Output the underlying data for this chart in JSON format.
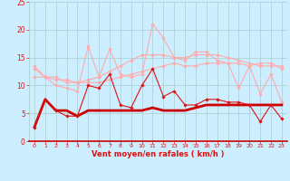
{
  "x": [
    0,
    1,
    2,
    3,
    4,
    5,
    6,
    7,
    8,
    9,
    10,
    11,
    12,
    13,
    14,
    15,
    16,
    17,
    18,
    19,
    20,
    21,
    22,
    23
  ],
  "series": [
    {
      "y": [
        2.5,
        7.5,
        5.5,
        4.5,
        4.5,
        10.0,
        9.5,
        12.0,
        6.5,
        6.0,
        10.0,
        13.0,
        8.0,
        9.0,
        6.5,
        6.5,
        7.5,
        7.5,
        7.0,
        7.0,
        6.5,
        3.5,
        6.5,
        4.0
      ],
      "color": "#dd1111",
      "lw": 0.8,
      "marker": "D",
      "ms": 1.8,
      "zorder": 5
    },
    {
      "y": [
        2.5,
        7.5,
        5.5,
        5.5,
        4.5,
        5.5,
        5.5,
        5.5,
        5.5,
        5.5,
        5.5,
        6.0,
        5.5,
        5.5,
        5.5,
        6.0,
        6.5,
        6.5,
        6.5,
        6.5,
        6.5,
        6.5,
        6.5,
        6.5
      ],
      "color": "#cc0000",
      "lw": 2.0,
      "marker": null,
      "ms": 0,
      "zorder": 3
    },
    {
      "y": [
        11.5,
        11.5,
        11.0,
        11.0,
        10.5,
        10.5,
        10.5,
        11.0,
        11.5,
        12.0,
        12.5,
        13.0,
        13.5,
        14.0,
        13.5,
        13.5,
        14.0,
        14.0,
        14.0,
        14.0,
        13.5,
        14.0,
        14.0,
        13.0
      ],
      "color": "#ffaaaa",
      "lw": 0.8,
      "marker": "D",
      "ms": 1.8,
      "zorder": 2
    },
    {
      "y": [
        13.0,
        11.5,
        11.5,
        10.5,
        10.5,
        11.0,
        11.5,
        12.5,
        13.5,
        14.5,
        15.5,
        15.5,
        15.5,
        15.0,
        15.0,
        15.5,
        15.5,
        15.5,
        15.0,
        14.5,
        14.0,
        13.5,
        13.5,
        13.5
      ],
      "color": "#ffaaaa",
      "lw": 0.8,
      "marker": "D",
      "ms": 1.8,
      "zorder": 2
    },
    {
      "y": [
        13.5,
        11.5,
        10.0,
        9.5,
        9.0,
        17.0,
        11.5,
        16.5,
        12.0,
        11.5,
        12.0,
        21.0,
        18.5,
        15.0,
        14.5,
        16.0,
        16.0,
        14.5,
        14.0,
        9.5,
        13.5,
        8.5,
        12.0,
        7.0
      ],
      "color": "#ffaaaa",
      "lw": 0.8,
      "marker": "D",
      "ms": 1.8,
      "zorder": 2
    }
  ],
  "xlabel": "Vent moyen/en rafales ( km/h )",
  "ylim": [
    0,
    25
  ],
  "yticks": [
    0,
    5,
    10,
    15,
    20,
    25
  ],
  "xticks": [
    0,
    1,
    2,
    3,
    4,
    5,
    6,
    7,
    8,
    9,
    10,
    11,
    12,
    13,
    14,
    15,
    16,
    17,
    18,
    19,
    20,
    21,
    22,
    23
  ],
  "bg_color": "#cceeff",
  "grid_color": "#aacccc",
  "tick_color": "#dd1111",
  "xlabel_color": "#dd1111",
  "arrow_chars": [
    "→",
    "↑",
    "↖",
    "↖",
    "↙",
    "↖",
    "↑",
    "↗",
    "↑",
    "↑",
    "↑",
    "↗",
    "↑",
    "↗",
    "↗",
    "↑",
    "↑",
    "↑",
    "↑",
    "↖",
    "↖",
    "↑",
    "↑",
    "↖"
  ]
}
